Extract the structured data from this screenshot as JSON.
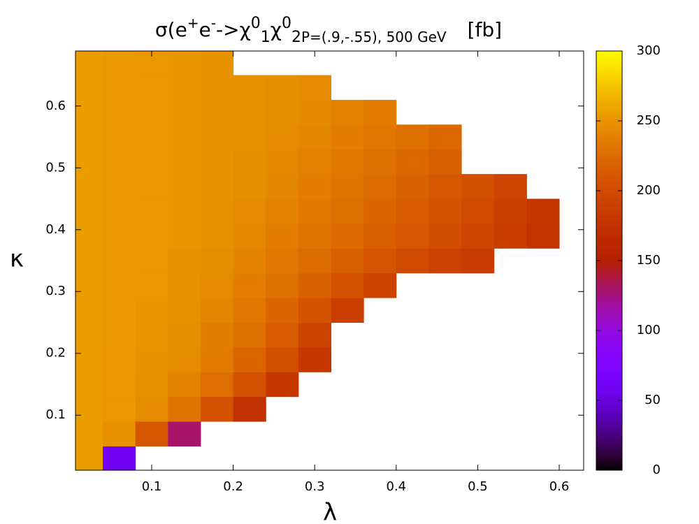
{
  "chart_data": {
    "type": "heatmap",
    "title_parts": [
      "σ(e",
      "+",
      "e",
      "-",
      "->χ",
      "0",
      "1",
      "χ",
      "0",
      "2",
      "P=(.9,-.55), 500 GeV",
      "[fb]"
    ],
    "xlabel": "λ",
    "ylabel": "κ",
    "x": [
      0.02,
      0.06,
      0.1,
      0.14,
      0.18,
      0.22,
      0.26,
      0.3,
      0.34,
      0.38,
      0.42,
      0.46,
      0.5,
      0.54,
      0.58,
      0.62
    ],
    "y": [
      0.03,
      0.07,
      0.11,
      0.15,
      0.19,
      0.23,
      0.27,
      0.31,
      0.35,
      0.39,
      0.43,
      0.47,
      0.51,
      0.55,
      0.59,
      0.63,
      0.67
    ],
    "z": [
      [
        255,
        60,
        null,
        null,
        null,
        null,
        null,
        null,
        null,
        null,
        null,
        null,
        null,
        null,
        null,
        null
      ],
      [
        255,
        248,
        210,
        130,
        null,
        null,
        null,
        null,
        null,
        null,
        null,
        null,
        null,
        null,
        null,
        null
      ],
      [
        255,
        252,
        245,
        230,
        205,
        172,
        null,
        null,
        null,
        null,
        null,
        null,
        null,
        null,
        null,
        null
      ],
      [
        255,
        252,
        248,
        240,
        227,
        205,
        180,
        null,
        null,
        null,
        null,
        null,
        null,
        null,
        null,
        null
      ],
      [
        255,
        252,
        249,
        245,
        236,
        221,
        203,
        180,
        null,
        null,
        null,
        null,
        null,
        null,
        null,
        null
      ],
      [
        255,
        253,
        250,
        246,
        238,
        228,
        213,
        192,
        null,
        null,
        null,
        null,
        null,
        null,
        null,
        null
      ],
      [
        255,
        253,
        250,
        248,
        242,
        233,
        221,
        206,
        188,
        null,
        null,
        null,
        null,
        null,
        null,
        null
      ],
      [
        255,
        253,
        252,
        249,
        245,
        237,
        228,
        218,
        206,
        192,
        null,
        null,
        null,
        null,
        null,
        null
      ],
      [
        255,
        253,
        252,
        249,
        246,
        240,
        233,
        225,
        216,
        207,
        198,
        191,
        185,
        null,
        null,
        null
      ],
      [
        255,
        253,
        252,
        251,
        248,
        243,
        237,
        231,
        224,
        216,
        209,
        201,
        194,
        186,
        176,
        null
      ],
      [
        255,
        253,
        252,
        251,
        248,
        245,
        240,
        234,
        228,
        221,
        213,
        206,
        198,
        189,
        179,
        null
      ],
      [
        255,
        253,
        252,
        251,
        249,
        246,
        242,
        237,
        231,
        225,
        218,
        210,
        203,
        194,
        null,
        null
      ],
      [
        255,
        253,
        252,
        251,
        249,
        246,
        243,
        239,
        234,
        228,
        222,
        216,
        null,
        null,
        null,
        null
      ],
      [
        255,
        253,
        252,
        251,
        249,
        248,
        245,
        242,
        237,
        233,
        228,
        222,
        null,
        null,
        null,
        null
      ],
      [
        255,
        253,
        252,
        251,
        249,
        248,
        246,
        243,
        240,
        236,
        null,
        null,
        null,
        null,
        null,
        null
      ],
      [
        255,
        253,
        252,
        251,
        249,
        248,
        246,
        245,
        null,
        null,
        null,
        null,
        null,
        null,
        null,
        null
      ],
      [
        255,
        253,
        252,
        251,
        249,
        null,
        null,
        null,
        null,
        null,
        null,
        null,
        null,
        null,
        null,
        null
      ]
    ],
    "xlim": [
      0.0065,
      0.63
    ],
    "ylim": [
      0.011,
      0.689
    ],
    "xticks": [
      0.1,
      0.2,
      0.3,
      0.4,
      0.5,
      0.6
    ],
    "yticks": [
      0.1,
      0.2,
      0.3,
      0.4,
      0.5,
      0.6
    ],
    "clim": [
      0,
      300
    ],
    "cticks": [
      0,
      50,
      100,
      150,
      200,
      250,
      300
    ]
  }
}
